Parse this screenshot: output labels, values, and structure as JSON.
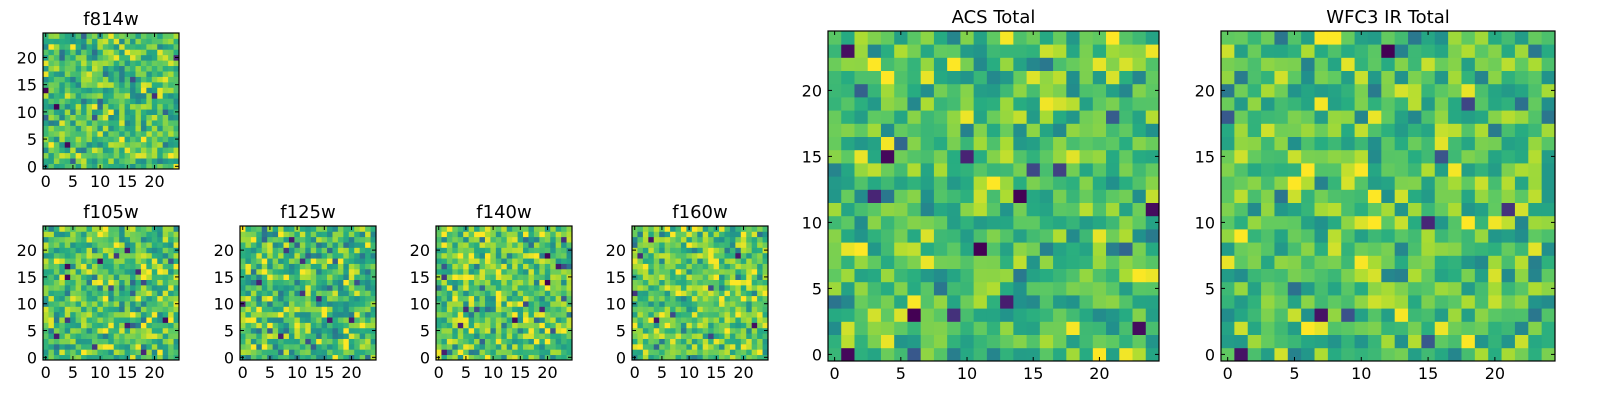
{
  "chart_data": [
    {
      "type": "heatmap",
      "title": "f814w",
      "grid_size": 25,
      "xticks": [
        0,
        5,
        10,
        15,
        20
      ],
      "yticks": [
        0,
        5,
        10,
        15,
        20
      ],
      "xlim": [
        0,
        24
      ],
      "ylim": [
        0,
        24
      ],
      "colormap": "viridis",
      "seed": 11,
      "mean": 0.7,
      "spread": 0.18
    },
    {
      "type": "heatmap",
      "title": "f105w",
      "grid_size": 25,
      "xticks": [
        0,
        5,
        10,
        15,
        20
      ],
      "yticks": [
        0,
        5,
        10,
        15,
        20
      ],
      "xlim": [
        0,
        24
      ],
      "ylim": [
        0,
        24
      ],
      "colormap": "viridis",
      "seed": 23,
      "mean": 0.72,
      "spread": 0.18
    },
    {
      "type": "heatmap",
      "title": "f125w",
      "grid_size": 25,
      "xticks": [
        0,
        5,
        10,
        15,
        20
      ],
      "yticks": [
        0,
        5,
        10,
        15,
        20
      ],
      "xlim": [
        0,
        24
      ],
      "ylim": [
        0,
        24
      ],
      "colormap": "viridis",
      "seed": 37,
      "mean": 0.7,
      "spread": 0.2
    },
    {
      "type": "heatmap",
      "title": "f140w",
      "grid_size": 25,
      "xticks": [
        0,
        5,
        10,
        15,
        20
      ],
      "yticks": [
        0,
        5,
        10,
        15,
        20
      ],
      "xlim": [
        0,
        24
      ],
      "ylim": [
        0,
        24
      ],
      "colormap": "viridis",
      "seed": 41,
      "mean": 0.74,
      "spread": 0.19
    },
    {
      "type": "heatmap",
      "title": "f160w",
      "grid_size": 25,
      "xticks": [
        0,
        5,
        10,
        15,
        20
      ],
      "yticks": [
        0,
        5,
        10,
        15,
        20
      ],
      "xlim": [
        0,
        24
      ],
      "ylim": [
        0,
        24
      ],
      "colormap": "viridis",
      "seed": 53,
      "mean": 0.76,
      "spread": 0.18
    },
    {
      "type": "heatmap",
      "title": "ACS Total",
      "grid_size": 25,
      "xticks": [
        0,
        5,
        10,
        15,
        20
      ],
      "yticks": [
        0,
        5,
        10,
        15,
        20
      ],
      "xlim": [
        0,
        24
      ],
      "ylim": [
        0,
        24
      ],
      "colormap": "viridis",
      "seed": 67,
      "mean": 0.72,
      "spread": 0.17
    },
    {
      "type": "heatmap",
      "title": "WFC3 IR Total",
      "grid_size": 25,
      "xticks": [
        0,
        5,
        10,
        15,
        20
      ],
      "yticks": [
        0,
        5,
        10,
        15,
        20
      ],
      "xlim": [
        0,
        24
      ],
      "ylim": [
        0,
        24
      ],
      "colormap": "viridis",
      "seed": 79,
      "mean": 0.72,
      "spread": 0.17
    }
  ]
}
